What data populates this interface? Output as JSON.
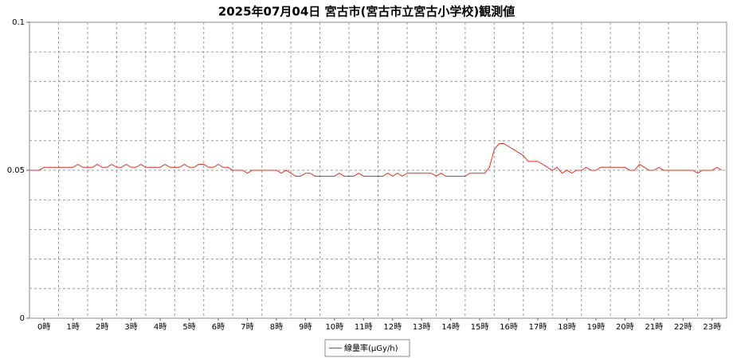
{
  "chart_data": {
    "type": "line",
    "title": "2025年07月04日 宮古市(宮古市立宮古小学校)観測値",
    "x": [
      0,
      10,
      20,
      30,
      40,
      50,
      60,
      70,
      80,
      90,
      100,
      110,
      120,
      130,
      140,
      150,
      160,
      170,
      180,
      190,
      200,
      210,
      220,
      230,
      240,
      250,
      260,
      270,
      280,
      290,
      300,
      310,
      320,
      330,
      340,
      350,
      360,
      370,
      380,
      390,
      400,
      410,
      420,
      430,
      440,
      450,
      460,
      470,
      480,
      490,
      500,
      510,
      520,
      530,
      540,
      550,
      560,
      570,
      580,
      590,
      600,
      610,
      620,
      630,
      640,
      650,
      660,
      670,
      680,
      690,
      700,
      710,
      720,
      730,
      740,
      750,
      760,
      770,
      780,
      790,
      800,
      810,
      820,
      830,
      840,
      850,
      860,
      870,
      880,
      890,
      900,
      910,
      920,
      930,
      940,
      950,
      960,
      970,
      980,
      990,
      1000,
      1010,
      1020,
      1030,
      1040,
      1050,
      1060,
      1070,
      1080,
      1090,
      1100,
      1110,
      1120,
      1130,
      1140,
      1150,
      1160,
      1170,
      1180,
      1190,
      1200,
      1210,
      1220,
      1230,
      1240,
      1250,
      1260,
      1270,
      1280,
      1290,
      1300,
      1310,
      1320,
      1330,
      1340,
      1350,
      1360,
      1370,
      1380,
      1390,
      1400,
      1410,
      1420,
      1430
    ],
    "series": [
      {
        "name": "線量率(μGy/h)",
        "color": "#e0301e",
        "values": [
          0.05,
          0.05,
          0.05,
          0.051,
          0.051,
          0.051,
          0.051,
          0.051,
          0.051,
          0.051,
          0.052,
          0.051,
          0.051,
          0.051,
          0.052,
          0.051,
          0.051,
          0.052,
          0.051,
          0.051,
          0.052,
          0.051,
          0.051,
          0.052,
          0.051,
          0.051,
          0.051,
          0.051,
          0.052,
          0.051,
          0.051,
          0.051,
          0.052,
          0.051,
          0.051,
          0.052,
          0.052,
          0.051,
          0.051,
          0.052,
          0.051,
          0.051,
          0.05,
          0.05,
          0.05,
          0.049,
          0.05,
          0.05,
          0.05,
          0.05,
          0.05,
          0.05,
          0.049,
          0.05,
          0.049,
          0.048,
          0.048,
          0.049,
          0.049,
          0.048,
          0.048,
          0.048,
          0.048,
          0.048,
          0.049,
          0.048,
          0.048,
          0.048,
          0.049,
          0.048,
          0.048,
          0.048,
          0.048,
          0.048,
          0.049,
          0.048,
          0.049,
          0.048,
          0.049,
          0.049,
          0.049,
          0.049,
          0.049,
          0.049,
          0.048,
          0.049,
          0.048,
          0.048,
          0.048,
          0.048,
          0.048,
          0.049,
          0.049,
          0.049,
          0.049,
          0.051,
          0.057,
          0.059,
          0.059,
          0.058,
          0.057,
          0.056,
          0.055,
          0.053,
          0.053,
          0.053,
          0.052,
          0.051,
          0.05,
          0.051,
          0.049,
          0.05,
          0.049,
          0.05,
          0.05,
          0.051,
          0.05,
          0.05,
          0.051,
          0.051,
          0.051,
          0.051,
          0.051,
          0.051,
          0.05,
          0.05,
          0.052,
          0.051,
          0.05,
          0.05,
          0.051,
          0.05,
          0.05,
          0.05,
          0.05,
          0.05,
          0.05,
          0.05,
          0.049,
          0.05,
          0.05,
          0.05,
          0.051,
          0.05
        ]
      }
    ],
    "xlim": [
      0,
      1440
    ],
    "xticks": [
      {
        "value": 30,
        "label": "0時"
      },
      {
        "value": 90,
        "label": "1時"
      },
      {
        "value": 150,
        "label": "2時"
      },
      {
        "value": 210,
        "label": "3時"
      },
      {
        "value": 270,
        "label": "4時"
      },
      {
        "value": 330,
        "label": "5時"
      },
      {
        "value": 390,
        "label": "6時"
      },
      {
        "value": 450,
        "label": "7時"
      },
      {
        "value": 510,
        "label": "8時"
      },
      {
        "value": 570,
        "label": "9時"
      },
      {
        "value": 630,
        "label": "10時"
      },
      {
        "value": 690,
        "label": "11時"
      },
      {
        "value": 750,
        "label": "12時"
      },
      {
        "value": 810,
        "label": "13時"
      },
      {
        "value": 870,
        "label": "14時"
      },
      {
        "value": 930,
        "label": "15時"
      },
      {
        "value": 990,
        "label": "16時"
      },
      {
        "value": 1050,
        "label": "17時"
      },
      {
        "value": 1110,
        "label": "18時"
      },
      {
        "value": 1170,
        "label": "19時"
      },
      {
        "value": 1230,
        "label": "20時"
      },
      {
        "value": 1290,
        "label": "21時"
      },
      {
        "value": 1350,
        "label": "22時"
      },
      {
        "value": 1410,
        "label": "23時"
      }
    ],
    "xgrid": [
      60,
      120,
      180,
      240,
      300,
      360,
      420,
      480,
      540,
      600,
      660,
      720,
      780,
      840,
      900,
      960,
      1020,
      1080,
      1140,
      1200,
      1260,
      1320,
      1380
    ],
    "ylim": [
      0,
      0.1
    ],
    "yticks": [
      0,
      0.05,
      0.1
    ],
    "ygrid": [
      0.01,
      0.02,
      0.03,
      0.04,
      0.05,
      0.06,
      0.07,
      0.08,
      0.09
    ],
    "grid": true,
    "legend": "bottom"
  }
}
